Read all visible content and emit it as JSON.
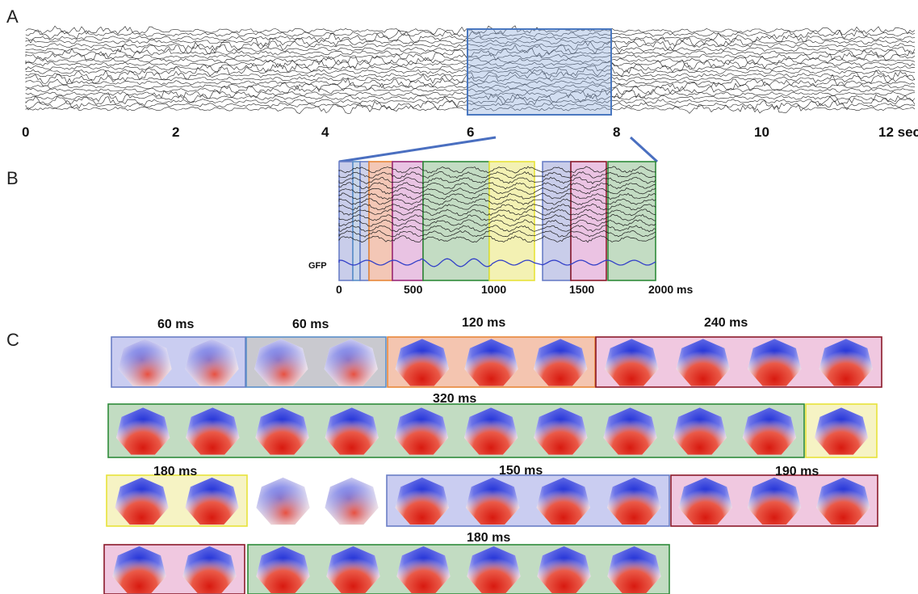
{
  "panels": {
    "a": "A",
    "b": "B",
    "c": "C"
  },
  "panel_a": {
    "ticks": [
      "0",
      "2",
      "4",
      "6",
      "8",
      "10",
      "12 sec"
    ]
  },
  "panel_b": {
    "gfp_label": "GFP",
    "ticks": [
      "0",
      "500",
      "1000",
      "1500",
      "2000 ms"
    ]
  },
  "colors": {
    "blue": "#6a7fc6",
    "steelblue": "#5b8fc9",
    "orange": "#e8873a",
    "magenta": "#9a2a78",
    "green": "#2e8b3a",
    "yellow": "#e8e33a",
    "darkred": "#8b1a2a",
    "map_negative": "#1f2fd6",
    "map_positive": "#e0201a"
  },
  "panel_c": {
    "row1": {
      "groups": [
        {
          "duration": "60 ms",
          "color": "blue",
          "maps": 2
        },
        {
          "duration": "60 ms",
          "color": "steelblue",
          "maps": 2
        },
        {
          "duration": "120 ms",
          "color": "orange",
          "maps": 3
        },
        {
          "duration": "240 ms",
          "color": "darkred",
          "maps": 4
        }
      ]
    },
    "row2": {
      "groups": [
        {
          "duration": "320 ms",
          "color": "green",
          "maps": 10
        },
        {
          "duration": "",
          "color": "yellow",
          "maps": 1
        }
      ]
    },
    "row3": {
      "groups": [
        {
          "duration": "180 ms",
          "color": "yellow",
          "maps": 2
        },
        {
          "duration": "",
          "color": "none",
          "maps": 2
        },
        {
          "duration": "150 ms",
          "color": "blue",
          "maps": 4
        },
        {
          "duration": "190 ms",
          "color": "darkred",
          "maps": 3
        }
      ]
    },
    "row4": {
      "groups": [
        {
          "duration": "",
          "color": "darkred",
          "maps": 2
        },
        {
          "duration": "180 ms",
          "color": "green",
          "maps": 6
        }
      ]
    }
  }
}
